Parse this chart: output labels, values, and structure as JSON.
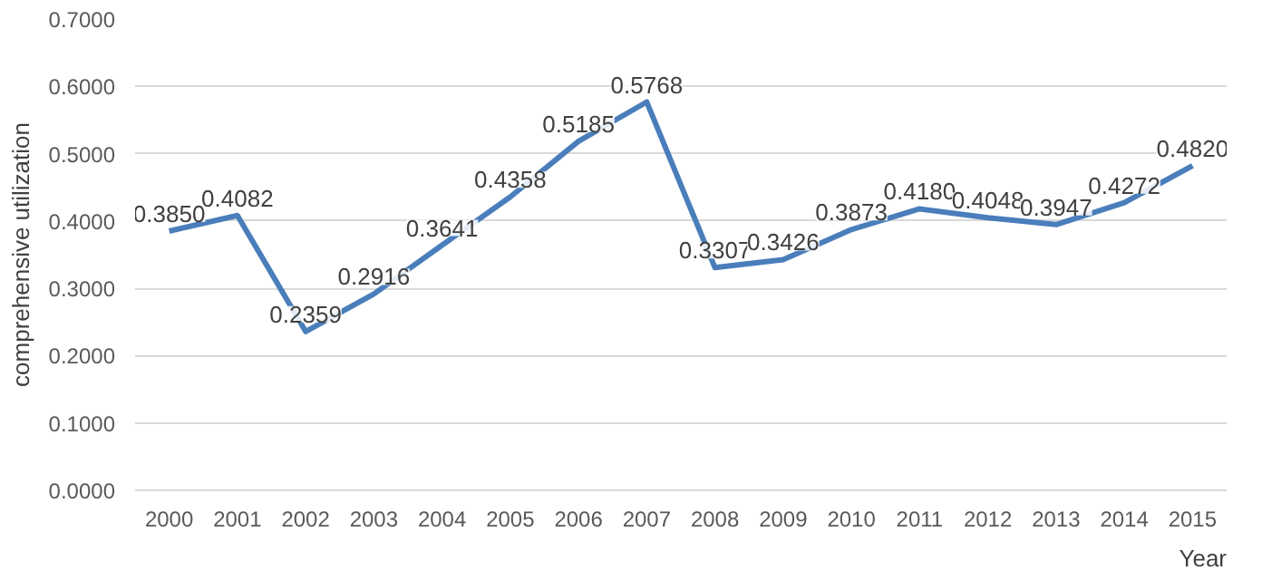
{
  "chart_data": {
    "type": "line",
    "xlabel": "Year",
    "ylabel": "comprehensive utilization",
    "categories": [
      "2000",
      "2001",
      "2002",
      "2003",
      "2004",
      "2005",
      "2006",
      "2007",
      "2008",
      "2009",
      "2010",
      "2011",
      "2012",
      "2013",
      "2014",
      "2015"
    ],
    "series": [
      {
        "color": "#4a7ebb",
        "values": [
          0.385,
          0.4082,
          0.2359,
          0.2916,
          0.3641,
          0.4358,
          0.5185,
          0.5768,
          0.3307,
          0.3426,
          0.3873,
          0.418,
          0.4048,
          0.3947,
          0.4272,
          0.482
        ],
        "value_labels": [
          "0.3850",
          "0.4082",
          "0.2359",
          "0.2916",
          "0.3641",
          "0.4358",
          "0.5185",
          "0.5768",
          "0.3307",
          "0.3426",
          "0.3873",
          "0.4180",
          "0.4048",
          "0.3947",
          "0.4272",
          "0.4820"
        ]
      }
    ],
    "ylim": [
      0,
      0.7
    ],
    "yticks": [
      {
        "value": 0,
        "label": "0.0000"
      },
      {
        "value": 0.1,
        "label": "0.1000"
      },
      {
        "value": 0.2,
        "label": "0.2000"
      },
      {
        "value": 0.3,
        "label": "0.3000"
      },
      {
        "value": 0.4,
        "label": "0.4000"
      },
      {
        "value": 0.5,
        "label": "0.5000"
      },
      {
        "value": 0.6,
        "label": "0.6000"
      },
      {
        "value": 0.7,
        "label": "0.7000"
      }
    ],
    "grid": "y",
    "marker": "none",
    "line_style": "solid"
  }
}
